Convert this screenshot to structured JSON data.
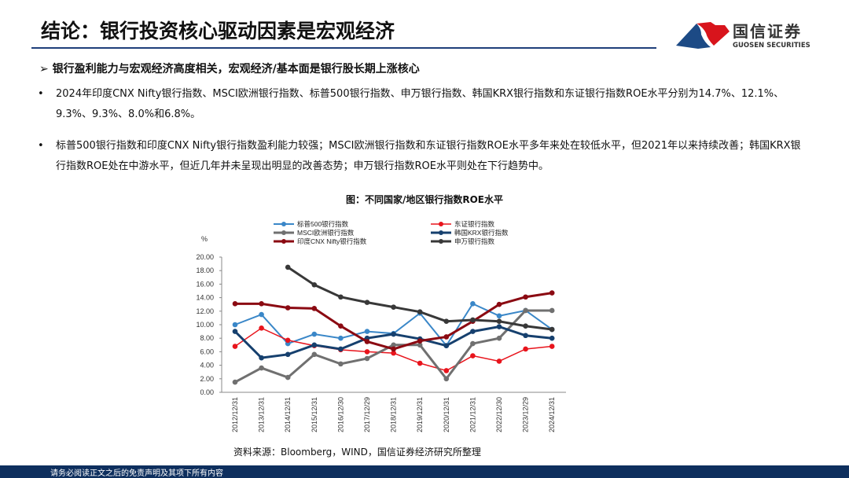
{
  "header": {
    "title": "结论：银行投资核心驱动因素是宏观经济",
    "logo_cn": "国信证券",
    "logo_en": "GUOSEN SECURITIES"
  },
  "subtitle": "➢ 银行盈利能力与宏观经济高度相关，宏观经济/基本面是银行股长期上涨核心",
  "bullets": [
    "2024年印度CNX Nifty银行指数、MSCI欧洲银行指数、标普500银行指数、申万银行指数、韩国KRX银行指数和东证银行指数ROE水平分别为14.7%、12.1%、9.3%、9.3%、8.0%和6.8%。",
    "标普500银行指数和印度CNX Nifty银行指数盈利能力较强；MSCI欧洲银行指数和东证银行指数ROE水平多年来处在较低水平，但2021年以来持续改善；韩国KRX银行指数ROE处在中游水平，但近几年并未呈现出明显的改善态势；申万银行指数ROE水平则处在下行趋势中。"
  ],
  "chart_title": "图：不同国家/地区银行指数ROE水平",
  "source": "资料来源：Bloomberg，WIND，国信证券经济研究所整理",
  "footer": "请务必阅读正文之后的免责声明及其项下所有内容",
  "chart_data": {
    "type": "line",
    "ylabel": "%",
    "ylim": [
      0,
      20
    ],
    "yticks": [
      "0.00",
      "2.00",
      "4.00",
      "6.00",
      "8.00",
      "10.00",
      "12.00",
      "14.00",
      "16.00",
      "18.00",
      "20.00"
    ],
    "categories": [
      "2012/12/31",
      "2013/12/31",
      "2014/12/31",
      "2015/12/31",
      "2016/12/30",
      "2017/12/29",
      "2018/12/31",
      "2019/12/31",
      "2020/12/31",
      "2021/12/31",
      "2022/12/30",
      "2023/12/29",
      "2024/12/31"
    ],
    "legend": "top",
    "series": [
      {
        "name": "标普500银行指数",
        "color": "#3a87c8",
        "width": 2,
        "values": [
          10.0,
          11.5,
          7.2,
          8.6,
          8.0,
          9.0,
          8.7,
          11.7,
          6.9,
          13.1,
          11.3,
          12.1,
          9.3
        ]
      },
      {
        "name": "东证银行指数",
        "color": "#e8141c",
        "width": 1.5,
        "values": [
          6.8,
          9.5,
          7.7,
          6.9,
          6.3,
          6.0,
          5.8,
          4.3,
          3.2,
          5.4,
          4.6,
          6.4,
          6.8
        ]
      },
      {
        "name": "MSCI欧洲银行指数",
        "color": "#707070",
        "width": 3,
        "values": [
          1.5,
          3.6,
          2.2,
          5.6,
          4.2,
          5.0,
          7.0,
          7.0,
          2.0,
          7.2,
          8.0,
          12.1,
          12.1
        ]
      },
      {
        "name": "韩国KRX银行指数",
        "color": "#16406e",
        "width": 3,
        "values": [
          9.0,
          5.1,
          5.6,
          7.0,
          6.4,
          8.0,
          8.6,
          7.9,
          6.9,
          9.0,
          9.7,
          8.4,
          8.0
        ]
      },
      {
        "name": "印度CNX Nifty银行指数",
        "color": "#8b0a12",
        "width": 3,
        "values": [
          13.1,
          13.1,
          12.5,
          12.4,
          9.8,
          7.5,
          6.4,
          7.6,
          8.2,
          10.5,
          13.0,
          14.1,
          14.7
        ]
      },
      {
        "name": "申万银行指数",
        "color": "#383838",
        "width": 3,
        "values": [
          null,
          null,
          18.5,
          15.9,
          14.1,
          13.3,
          12.6,
          11.9,
          10.5,
          10.7,
          10.5,
          9.8,
          9.3
        ]
      }
    ]
  }
}
